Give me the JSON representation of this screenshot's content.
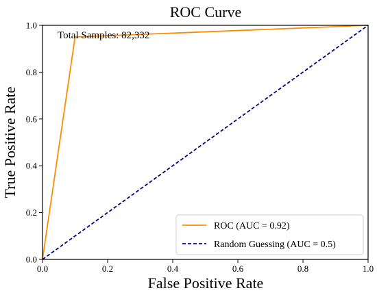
{
  "chart_data": {
    "type": "line",
    "title": "ROC Curve",
    "xlabel": "False Positive Rate",
    "ylabel": "True Positive Rate",
    "xlim": [
      0.0,
      1.0
    ],
    "ylim": [
      0.0,
      1.0
    ],
    "xticks": [
      "0.0",
      "0.2",
      "0.4",
      "0.6",
      "0.8",
      "1.0"
    ],
    "yticks": [
      "0.0",
      "0.2",
      "0.4",
      "0.6",
      "0.8",
      "1.0"
    ],
    "grid": false,
    "annotation": "Total Samples: 82,332",
    "legend_position": "bottom-right",
    "series": [
      {
        "name": "ROC (AUC = 0.92)",
        "color": "#ff8c00",
        "style": "solid",
        "x": [
          0.0,
          0.1,
          1.0
        ],
        "y": [
          0.0,
          0.95,
          1.0
        ]
      },
      {
        "name": "Random Guessing (AUC = 0.5)",
        "color": "#000080",
        "style": "dashed",
        "x": [
          0.0,
          1.0
        ],
        "y": [
          0.0,
          1.0
        ]
      }
    ]
  }
}
